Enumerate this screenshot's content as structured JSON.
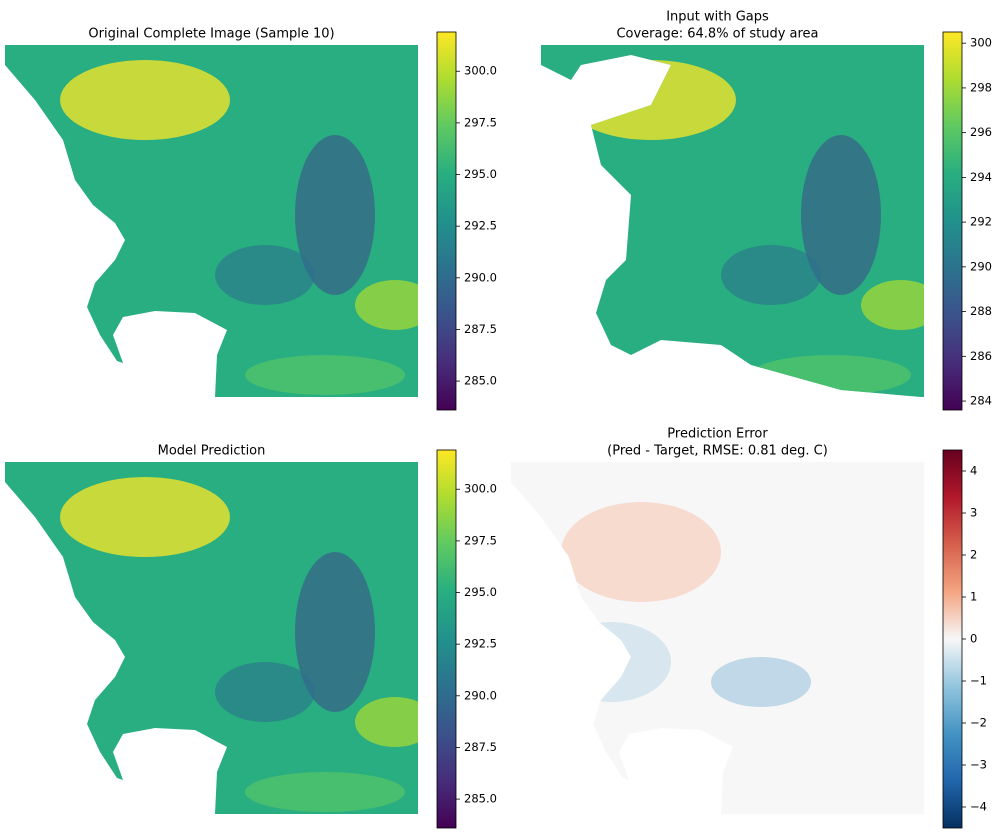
{
  "chart_data": [
    {
      "type": "heatmap",
      "title": "Original Complete Image (Sample 10)",
      "clim": [
        283.6,
        301.9
      ],
      "cticks": [
        {
          "value": 285,
          "label": "285.0"
        },
        287.5,
        {
          "value": 290,
          "label": "290.0"
        },
        292.5,
        {
          "value": 295,
          "label": "295.0"
        },
        297.5,
        {
          "value": 300,
          "label": "300.0"
        }
      ],
      "colormap": [
        "#440154",
        "#472d7b",
        "#3b528b",
        "#2c728e",
        "#21918c",
        "#28ae80",
        "#5ec962",
        "#addc30",
        "#fde725"
      ]
    },
    {
      "type": "heatmap",
      "title": "Input with Gaps",
      "subtitle": "Coverage: 64.8% of study area",
      "clim": [
        283.6,
        300.5
      ],
      "cticks": [
        284,
        286,
        288,
        290,
        292,
        294,
        296,
        298,
        300
      ],
      "colormap": [
        "#440154",
        "#472d7b",
        "#3b528b",
        "#2c728e",
        "#21918c",
        "#28ae80",
        "#5ec962",
        "#addc30",
        "#fde725"
      ]
    },
    {
      "type": "heatmap",
      "title": "Model Prediction",
      "clim": [
        283.6,
        301.9
      ],
      "cticks": [
        {
          "value": 285,
          "label": "285.0"
        },
        287.5,
        {
          "value": 290,
          "label": "290.0"
        },
        292.5,
        {
          "value": 295,
          "label": "295.0"
        },
        297.5,
        {
          "value": 300,
          "label": "300.0"
        }
      ],
      "colormap": [
        "#440154",
        "#472d7b",
        "#3b528b",
        "#2c728e",
        "#21918c",
        "#28ae80",
        "#5ec962",
        "#addc30",
        "#fde725"
      ]
    },
    {
      "type": "heatmap",
      "title": "Prediction Error",
      "subtitle": "(Pred - Target, RMSE: 0.81 deg. C)",
      "clim": [
        -4.5,
        4.5
      ],
      "cticks": [
        {
          "value": -4,
          "label": "−4"
        },
        {
          "value": -3,
          "label": "−3"
        },
        {
          "value": -2,
          "label": "−2"
        },
        {
          "value": -1,
          "label": "−1"
        },
        0,
        1,
        2,
        3,
        4
      ],
      "colormap": [
        "#053061",
        "#2166ac",
        "#4393c3",
        "#92c5de",
        "#f7f7f7",
        "#f4a582",
        "#d6604d",
        "#b2182b",
        "#67001f"
      ]
    }
  ]
}
